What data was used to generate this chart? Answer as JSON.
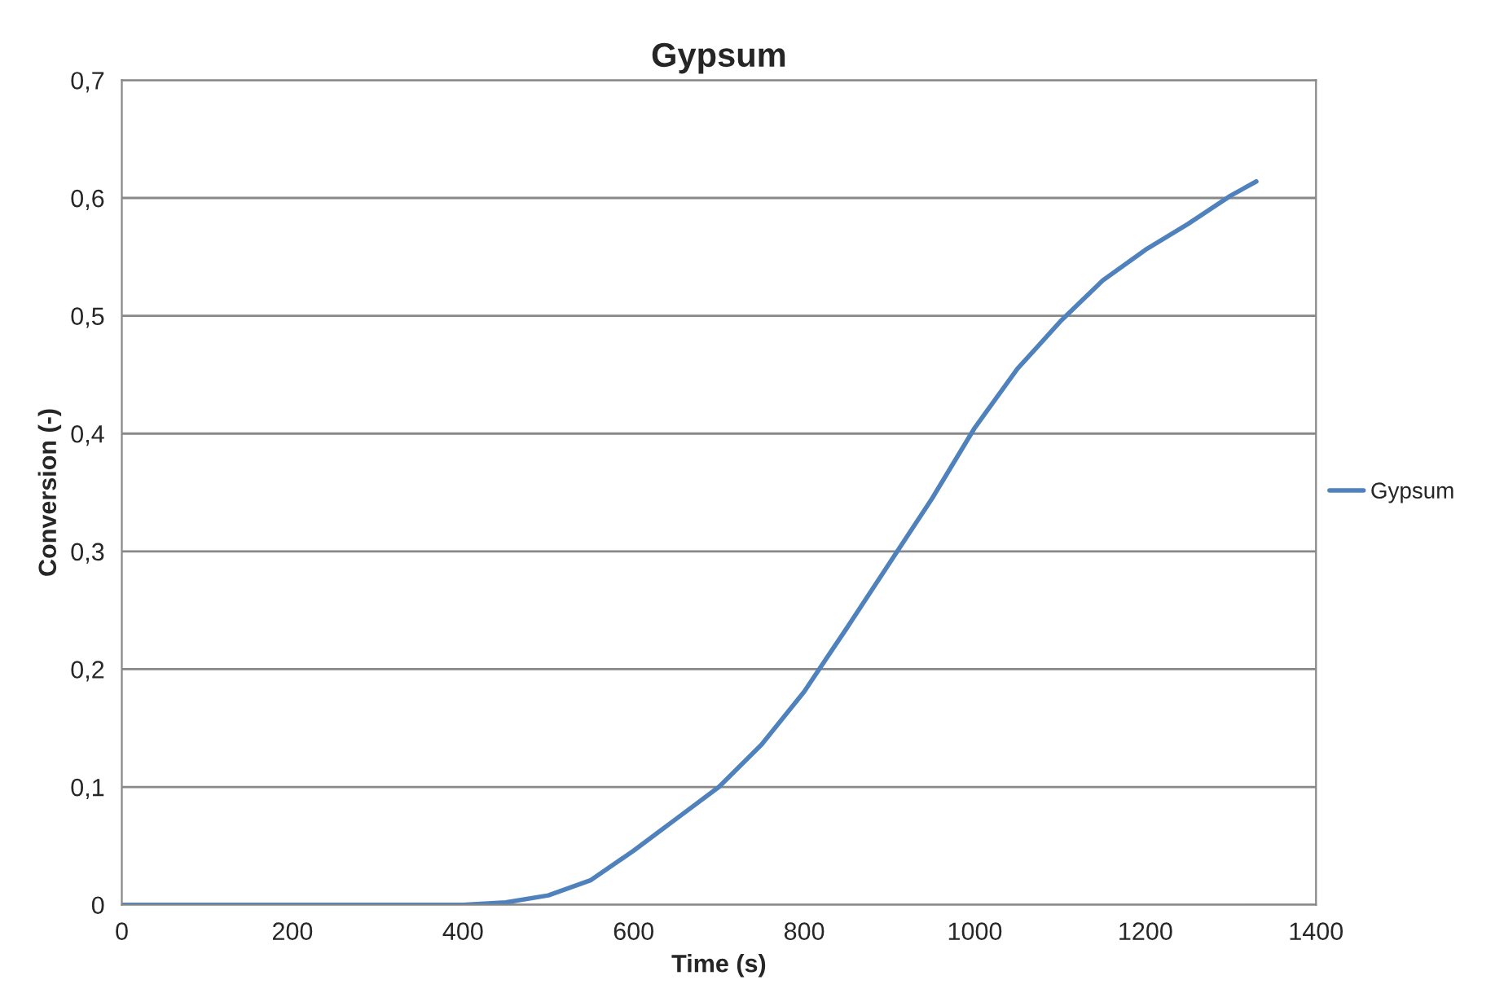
{
  "chart_data": {
    "type": "line",
    "title": "Gypsum",
    "xlabel": "Time (s)",
    "ylabel": "Conversion (-)",
    "series": [
      {
        "name": "Gypsum",
        "color": "#4f81bd",
        "x": [
          0,
          100,
          200,
          300,
          400,
          450,
          500,
          550,
          600,
          650,
          700,
          750,
          800,
          850,
          900,
          950,
          1000,
          1050,
          1100,
          1150,
          1200,
          1250,
          1300,
          1330
        ],
        "values": [
          0,
          0,
          0,
          0,
          0,
          0.002,
          0.008,
          0.021,
          0.046,
          0.073,
          0.1,
          0.136,
          0.181,
          0.235,
          0.29,
          0.345,
          0.405,
          0.455,
          0.495,
          0.53,
          0.556,
          0.578,
          0.602,
          0.614
        ]
      }
    ],
    "xlim": [
      0,
      1400
    ],
    "xticks": [
      0,
      200,
      400,
      600,
      800,
      1000,
      1200,
      1400
    ],
    "ylim": [
      0,
      0.7
    ],
    "yticks": [
      {
        "value": 0,
        "label": "0"
      },
      {
        "value": 0.1,
        "label": "0,1"
      },
      {
        "value": 0.2,
        "label": "0,2"
      },
      {
        "value": 0.3,
        "label": "0,3"
      },
      {
        "value": 0.4,
        "label": "0,4"
      },
      {
        "value": 0.5,
        "label": "0,5"
      },
      {
        "value": 0.6,
        "label": "0,6"
      },
      {
        "value": 0.7,
        "label": "0,7"
      }
    ],
    "grid": "y",
    "legend": "right"
  }
}
